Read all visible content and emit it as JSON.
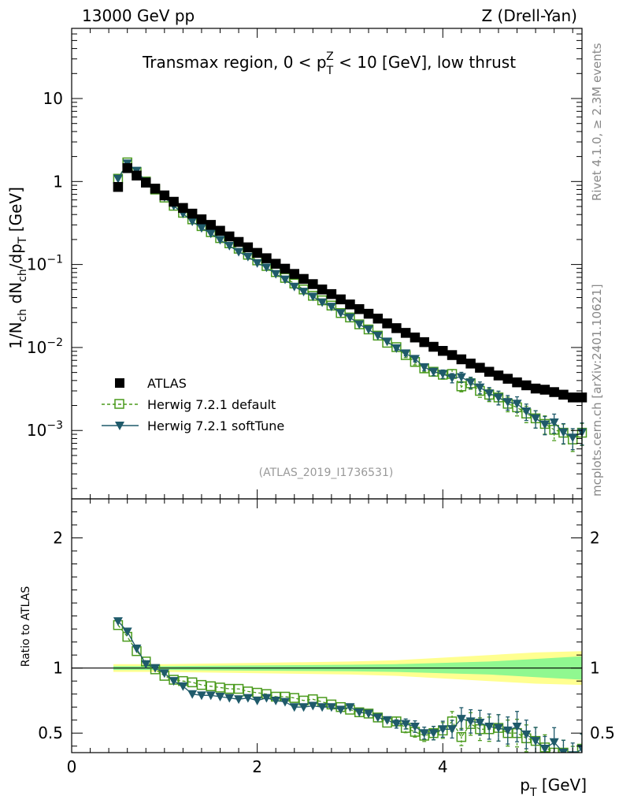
{
  "header": {
    "left": "13000 GeV pp",
    "right": "Z (Drell-Yan)"
  },
  "side_labels": {
    "rivet": "Rivet 4.1.0, ≥ 2.3M events",
    "mcplots": "mcplots.cern.ch [arXiv:2401.10621]"
  },
  "reference": "(ATLAS_2019_I1736531)",
  "colors": {
    "atlas": "#000000",
    "default": "#4a9a1c",
    "softtune": "#1f5a6a",
    "band_inner": "#90f890",
    "band_outer": "#ffff90"
  },
  "chart_data": [
    {
      "type": "scatter",
      "panel": "main",
      "title_parts": {
        "lead": "Transmax region, 0 < p",
        "sub": "T",
        "sup": "Z",
        "tail": " < 10 [GeV], low thrust"
      },
      "ylabel": "1/N_ch dN_ch/dp_T [GeV]",
      "yscale": "log",
      "ylim": [
        0.00015,
        70
      ],
      "y_ticks": [
        {
          "value": 0.001,
          "base": "10",
          "exp": "−3"
        },
        {
          "value": 0.01,
          "base": "10",
          "exp": "−2"
        },
        {
          "value": 0.1,
          "base": "10",
          "exp": "−1"
        },
        {
          "value": 1,
          "base": "1",
          "exp": ""
        },
        {
          "value": 10,
          "base": "10",
          "exp": ""
        }
      ],
      "xlim": [
        0,
        5.5
      ],
      "legend": [
        {
          "key": "atlas",
          "label": "ATLAS"
        },
        {
          "key": "default",
          "label": "Herwig 7.2.1 default"
        },
        {
          "key": "softtune",
          "label": "Herwig 7.2.1 softTune"
        }
      ],
      "x": [
        0.5,
        0.6,
        0.7,
        0.8,
        0.9,
        1.0,
        1.1,
        1.2,
        1.3,
        1.4,
        1.5,
        1.6,
        1.7,
        1.8,
        1.9,
        2.0,
        2.1,
        2.2,
        2.3,
        2.4,
        2.5,
        2.6,
        2.7,
        2.8,
        2.9,
        3.0,
        3.1,
        3.2,
        3.3,
        3.4,
        3.5,
        3.6,
        3.7,
        3.8,
        3.9,
        4.0,
        4.1,
        4.2,
        4.3,
        4.4,
        4.5,
        4.6,
        4.7,
        4.8,
        4.9,
        5.0,
        5.1,
        5.2,
        5.3,
        5.4,
        5.5
      ],
      "series": [
        {
          "key": "atlas",
          "name": "ATLAS",
          "values": [
            0.86,
            1.45,
            1.18,
            0.97,
            0.82,
            0.68,
            0.57,
            0.48,
            0.41,
            0.35,
            0.3,
            0.255,
            0.218,
            0.187,
            0.161,
            0.138,
            0.119,
            0.102,
            0.089,
            0.077,
            0.067,
            0.058,
            0.05,
            0.044,
            0.038,
            0.033,
            0.029,
            0.0255,
            0.0223,
            0.0195,
            0.0171,
            0.015,
            0.0132,
            0.0116,
            0.0102,
            0.0091,
            0.0081,
            0.0072,
            0.0064,
            0.0057,
            0.0051,
            0.0046,
            0.0042,
            0.0038,
            0.0035,
            0.0032,
            0.0031,
            0.0029,
            0.0027,
            0.0025,
            0.0025
          ]
        },
        {
          "key": "default",
          "name": "Herwig 7.2.1 default",
          "values": [
            1.08,
            1.7,
            1.3,
            1.0,
            0.8,
            0.64,
            0.51,
            0.42,
            0.35,
            0.29,
            0.245,
            0.208,
            0.18,
            0.155,
            0.131,
            0.112,
            0.096,
            0.081,
            0.069,
            0.059,
            0.05,
            0.042,
            0.037,
            0.032,
            0.026,
            0.023,
            0.019,
            0.0165,
            0.0139,
            0.0114,
            0.0101,
            0.0081,
            0.0067,
            0.0056,
            0.0051,
            0.0047,
            0.0048,
            0.0034,
            0.0037,
            0.003,
            0.0027,
            0.0025,
            0.0021,
            0.0019,
            0.0016,
            0.0014,
            0.0012,
            0.00102,
            0.00094,
            0.00078,
            0.00094
          ]
        },
        {
          "key": "softtune",
          "name": "Herwig 7.2.1 softTune",
          "values": [
            1.08,
            1.65,
            1.35,
            1.0,
            0.82,
            0.65,
            0.51,
            0.41,
            0.33,
            0.275,
            0.236,
            0.198,
            0.168,
            0.142,
            0.124,
            0.104,
            0.092,
            0.077,
            0.066,
            0.054,
            0.047,
            0.041,
            0.035,
            0.031,
            0.026,
            0.023,
            0.019,
            0.0165,
            0.0139,
            0.0118,
            0.0098,
            0.0085,
            0.0073,
            0.0058,
            0.0051,
            0.0048,
            0.0043,
            0.0044,
            0.0038,
            0.0033,
            0.0028,
            0.0025,
            0.0022,
            0.0021,
            0.0017,
            0.0014,
            0.00118,
            0.00125,
            0.00095,
            0.00082,
            0.00095
          ]
        }
      ]
    },
    {
      "type": "scatter",
      "panel": "ratio",
      "ylabel": "Ratio to ATLAS",
      "xlabel": "p_T [GeV]",
      "ylim": [
        0.35,
        2.3
      ],
      "y_ticks": [
        0.5,
        1,
        2
      ],
      "xlim": [
        0,
        5.5
      ],
      "x_ticks": [
        0,
        2,
        4
      ],
      "band": {
        "x": [
          0.45,
          1.0,
          2.0,
          3.0,
          3.5,
          4.0,
          4.5,
          5.0,
          5.5
        ],
        "inner": [
          0.015,
          0.015,
          0.02,
          0.025,
          0.03,
          0.04,
          0.05,
          0.07,
          0.09
        ],
        "outer": [
          0.03,
          0.03,
          0.04,
          0.05,
          0.06,
          0.08,
          0.1,
          0.12,
          0.13
        ]
      },
      "series": [
        {
          "key": "default",
          "name": "Herwig 7.2.1 default",
          "values": [
            1.33,
            1.24,
            1.13,
            1.05,
            0.99,
            0.94,
            0.91,
            0.9,
            0.89,
            0.87,
            0.86,
            0.85,
            0.84,
            0.84,
            0.82,
            0.81,
            0.8,
            0.78,
            0.78,
            0.77,
            0.75,
            0.76,
            0.74,
            0.72,
            0.7,
            0.68,
            0.66,
            0.65,
            0.62,
            0.58,
            0.59,
            0.54,
            0.51,
            0.48,
            0.5,
            0.52,
            0.59,
            0.47,
            0.57,
            0.53,
            0.53,
            0.54,
            0.5,
            0.5,
            0.46,
            0.44,
            0.39,
            0.35,
            0.35,
            0.31,
            0.38
          ]
        },
        {
          "key": "softtune",
          "name": "Herwig 7.2.1 softTune",
          "values": [
            1.36,
            1.28,
            1.15,
            1.03,
            1.0,
            0.96,
            0.9,
            0.86,
            0.8,
            0.79,
            0.79,
            0.78,
            0.77,
            0.76,
            0.77,
            0.75,
            0.77,
            0.75,
            0.74,
            0.7,
            0.7,
            0.71,
            0.7,
            0.7,
            0.68,
            0.7,
            0.66,
            0.65,
            0.62,
            0.6,
            0.57,
            0.57,
            0.55,
            0.5,
            0.5,
            0.53,
            0.53,
            0.61,
            0.59,
            0.58,
            0.55,
            0.54,
            0.52,
            0.55,
            0.49,
            0.44,
            0.38,
            0.43,
            0.35,
            0.33,
            0.38
          ]
        }
      ]
    }
  ]
}
